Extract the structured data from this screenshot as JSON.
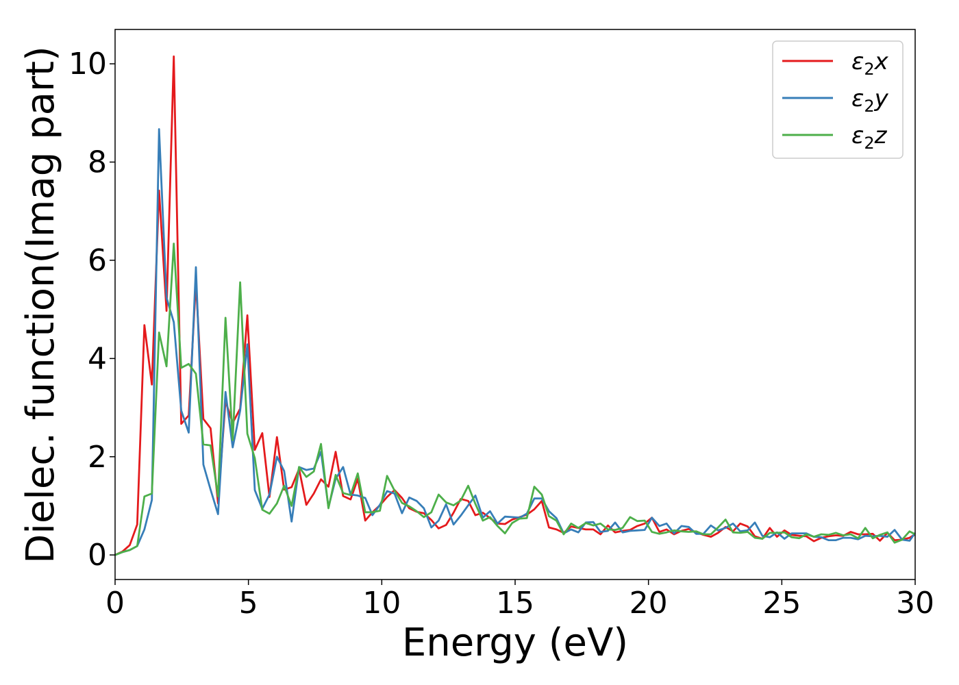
{
  "chart_data": {
    "type": "line",
    "xlabel": "Energy (eV)",
    "ylabel": "Dielec. function(Imag part)",
    "xlim": [
      0,
      30
    ],
    "ylim": [
      -0.5,
      10.7
    ],
    "xticks": [
      0,
      5,
      10,
      15,
      20,
      25,
      30
    ],
    "yticks": [
      0,
      2,
      4,
      6,
      8,
      10
    ],
    "grid": false,
    "legend_position": "top-right",
    "series": [
      {
        "name": "ε₂x",
        "legend": {
          "base": "ε",
          "sub": "2",
          "suffix": "x"
        },
        "color": "#e41a1c",
        "x": [
          0,
          0.28,
          0.55,
          0.83,
          1.1,
          1.38,
          1.65,
          1.93,
          2.2,
          2.48,
          2.76,
          3.03,
          3.31,
          3.58,
          3.86,
          4.14,
          4.41,
          4.69,
          4.96,
          5.24,
          5.52,
          5.79,
          6.07,
          6.34,
          6.62,
          6.9,
          7.17,
          7.45,
          7.72,
          8.0,
          8.27,
          8.55,
          8.83,
          9.1,
          9.38,
          9.65,
          9.93,
          10.2,
          10.48,
          10.76,
          11.03,
          11.31,
          11.58,
          11.86,
          12.13,
          12.41,
          12.69,
          12.96,
          13.24,
          13.51,
          13.79,
          14.06,
          14.34,
          14.62,
          14.89,
          15.17,
          15.44,
          15.72,
          16.0,
          16.27,
          16.55,
          16.82,
          17.1,
          17.37,
          17.65,
          17.93,
          18.2,
          18.48,
          18.75,
          19.03,
          19.31,
          19.58,
          19.86,
          20.13,
          20.41,
          20.68,
          20.96,
          21.24,
          21.51,
          21.79,
          22.06,
          22.34,
          22.61,
          22.89,
          23.17,
          23.44,
          23.72,
          23.99,
          24.27,
          24.55,
          24.82,
          25.1,
          25.37,
          25.65,
          25.92,
          26.2,
          26.48,
          26.75,
          27.03,
          27.3,
          27.58,
          27.86,
          28.13,
          28.41,
          28.68,
          28.96,
          29.23,
          29.51,
          29.79,
          30.0
        ],
        "y": [
          0.0,
          0.07,
          0.2,
          0.62,
          4.68,
          3.47,
          7.42,
          4.97,
          10.15,
          2.67,
          2.84,
          5.56,
          2.77,
          2.58,
          1.05,
          3.13,
          2.69,
          2.98,
          4.88,
          2.14,
          2.48,
          1.18,
          2.4,
          1.33,
          1.38,
          1.75,
          1.02,
          1.25,
          1.54,
          1.39,
          2.1,
          1.2,
          1.13,
          1.55,
          0.7,
          0.87,
          1.01,
          1.18,
          1.32,
          1.16,
          0.95,
          0.88,
          0.85,
          0.71,
          0.54,
          0.61,
          0.86,
          1.14,
          1.1,
          0.81,
          0.86,
          0.75,
          0.64,
          0.63,
          0.72,
          0.77,
          0.82,
          0.93,
          1.1,
          0.56,
          0.52,
          0.45,
          0.58,
          0.55,
          0.52,
          0.52,
          0.42,
          0.6,
          0.46,
          0.49,
          0.51,
          0.59,
          0.64,
          0.76,
          0.47,
          0.52,
          0.42,
          0.49,
          0.53,
          0.46,
          0.41,
          0.37,
          0.45,
          0.57,
          0.48,
          0.64,
          0.58,
          0.38,
          0.33,
          0.55,
          0.37,
          0.5,
          0.41,
          0.39,
          0.38,
          0.28,
          0.35,
          0.38,
          0.4,
          0.39,
          0.47,
          0.42,
          0.42,
          0.43,
          0.29,
          0.45,
          0.3,
          0.31,
          0.35,
          0.42
        ]
      },
      {
        "name": "ε₂y",
        "legend": {
          "base": "ε",
          "sub": "2",
          "suffix": "y"
        },
        "color": "#377eb8",
        "x": [
          0,
          0.28,
          0.55,
          0.83,
          1.1,
          1.38,
          1.65,
          1.93,
          2.2,
          2.48,
          2.76,
          3.03,
          3.31,
          3.58,
          3.86,
          4.14,
          4.41,
          4.69,
          4.96,
          5.24,
          5.52,
          5.79,
          6.07,
          6.34,
          6.62,
          6.9,
          7.17,
          7.45,
          7.72,
          8.0,
          8.27,
          8.55,
          8.83,
          9.1,
          9.38,
          9.65,
          9.93,
          10.2,
          10.48,
          10.76,
          11.03,
          11.31,
          11.58,
          11.86,
          12.13,
          12.41,
          12.69,
          12.96,
          13.24,
          13.51,
          13.79,
          14.06,
          14.34,
          14.62,
          14.89,
          15.17,
          15.44,
          15.72,
          16.0,
          16.27,
          16.55,
          16.82,
          17.1,
          17.37,
          17.65,
          17.93,
          18.2,
          18.48,
          18.75,
          19.03,
          19.31,
          19.58,
          19.86,
          20.13,
          20.41,
          20.68,
          20.96,
          21.24,
          21.51,
          21.79,
          22.06,
          22.34,
          22.61,
          22.89,
          23.17,
          23.44,
          23.72,
          23.99,
          24.27,
          24.55,
          24.82,
          25.1,
          25.37,
          25.65,
          25.92,
          26.2,
          26.48,
          26.75,
          27.03,
          27.3,
          27.58,
          27.86,
          28.13,
          28.41,
          28.68,
          28.96,
          29.23,
          29.51,
          29.79,
          30.0
        ],
        "y": [
          0.0,
          0.06,
          0.1,
          0.18,
          0.52,
          1.12,
          8.67,
          5.24,
          4.74,
          2.94,
          2.49,
          5.86,
          1.84,
          1.33,
          0.83,
          3.32,
          2.19,
          2.94,
          4.29,
          1.32,
          0.94,
          1.23,
          2.0,
          1.71,
          0.68,
          1.79,
          1.73,
          1.76,
          2.1,
          0.97,
          1.55,
          1.79,
          1.23,
          1.21,
          1.16,
          0.81,
          1.02,
          1.3,
          1.25,
          0.85,
          1.17,
          1.1,
          0.95,
          0.56,
          0.7,
          1.03,
          0.62,
          0.8,
          1.01,
          1.21,
          0.76,
          0.89,
          0.64,
          0.78,
          0.77,
          0.76,
          0.84,
          1.15,
          1.15,
          0.89,
          0.75,
          0.44,
          0.52,
          0.46,
          0.66,
          0.67,
          0.47,
          0.49,
          0.66,
          0.46,
          0.49,
          0.5,
          0.51,
          0.76,
          0.59,
          0.64,
          0.44,
          0.59,
          0.57,
          0.43,
          0.43,
          0.6,
          0.5,
          0.55,
          0.64,
          0.48,
          0.5,
          0.66,
          0.39,
          0.36,
          0.46,
          0.33,
          0.44,
          0.44,
          0.44,
          0.37,
          0.36,
          0.3,
          0.3,
          0.35,
          0.35,
          0.32,
          0.39,
          0.38,
          0.39,
          0.37,
          0.51,
          0.31,
          0.29,
          0.45
        ]
      },
      {
        "name": "ε₂z",
        "legend": {
          "base": "ε",
          "sub": "2",
          "suffix": "z"
        },
        "color": "#4daf4a",
        "x": [
          0,
          0.28,
          0.55,
          0.83,
          1.1,
          1.38,
          1.65,
          1.93,
          2.2,
          2.48,
          2.76,
          3.03,
          3.31,
          3.58,
          3.86,
          4.14,
          4.41,
          4.69,
          4.96,
          5.24,
          5.52,
          5.79,
          6.07,
          6.34,
          6.62,
          6.9,
          7.17,
          7.45,
          7.72,
          8.0,
          8.27,
          8.55,
          8.83,
          9.1,
          9.38,
          9.65,
          9.93,
          10.2,
          10.48,
          10.76,
          11.03,
          11.31,
          11.58,
          11.86,
          12.13,
          12.41,
          12.69,
          12.96,
          13.24,
          13.51,
          13.79,
          14.06,
          14.34,
          14.62,
          14.89,
          15.17,
          15.44,
          15.72,
          16.0,
          16.27,
          16.55,
          16.82,
          17.1,
          17.37,
          17.65,
          17.93,
          18.2,
          18.48,
          18.75,
          19.03,
          19.31,
          19.58,
          19.86,
          20.13,
          20.41,
          20.68,
          20.96,
          21.24,
          21.51,
          21.79,
          22.06,
          22.34,
          22.61,
          22.89,
          23.17,
          23.44,
          23.72,
          23.99,
          24.27,
          24.55,
          24.82,
          25.1,
          25.37,
          25.65,
          25.92,
          26.2,
          26.48,
          26.75,
          27.03,
          27.3,
          27.58,
          27.86,
          28.13,
          28.41,
          28.68,
          28.96,
          29.23,
          29.51,
          29.79,
          30.0
        ],
        "y": [
          0.0,
          0.06,
          0.1,
          0.18,
          1.19,
          1.25,
          4.53,
          3.84,
          6.34,
          3.81,
          3.89,
          3.69,
          2.25,
          2.23,
          1.19,
          4.83,
          2.34,
          5.55,
          2.47,
          1.97,
          0.92,
          0.84,
          1.05,
          1.41,
          1.0,
          1.79,
          1.59,
          1.7,
          2.26,
          0.95,
          1.63,
          1.26,
          1.22,
          1.66,
          0.87,
          0.87,
          0.9,
          1.61,
          1.31,
          1.06,
          0.99,
          0.89,
          0.77,
          0.87,
          1.23,
          1.07,
          1.01,
          1.11,
          1.41,
          1.04,
          0.7,
          0.77,
          0.59,
          0.44,
          0.65,
          0.74,
          0.75,
          1.39,
          1.23,
          0.79,
          0.7,
          0.42,
          0.64,
          0.55,
          0.65,
          0.6,
          0.64,
          0.52,
          0.51,
          0.55,
          0.77,
          0.69,
          0.7,
          0.47,
          0.43,
          0.46,
          0.5,
          0.48,
          0.47,
          0.48,
          0.42,
          0.42,
          0.56,
          0.72,
          0.46,
          0.45,
          0.47,
          0.35,
          0.33,
          0.45,
          0.45,
          0.46,
          0.36,
          0.34,
          0.42,
          0.37,
          0.42,
          0.41,
          0.45,
          0.4,
          0.42,
          0.34,
          0.55,
          0.34,
          0.41,
          0.46,
          0.25,
          0.31,
          0.48,
          0.42
        ]
      }
    ]
  }
}
